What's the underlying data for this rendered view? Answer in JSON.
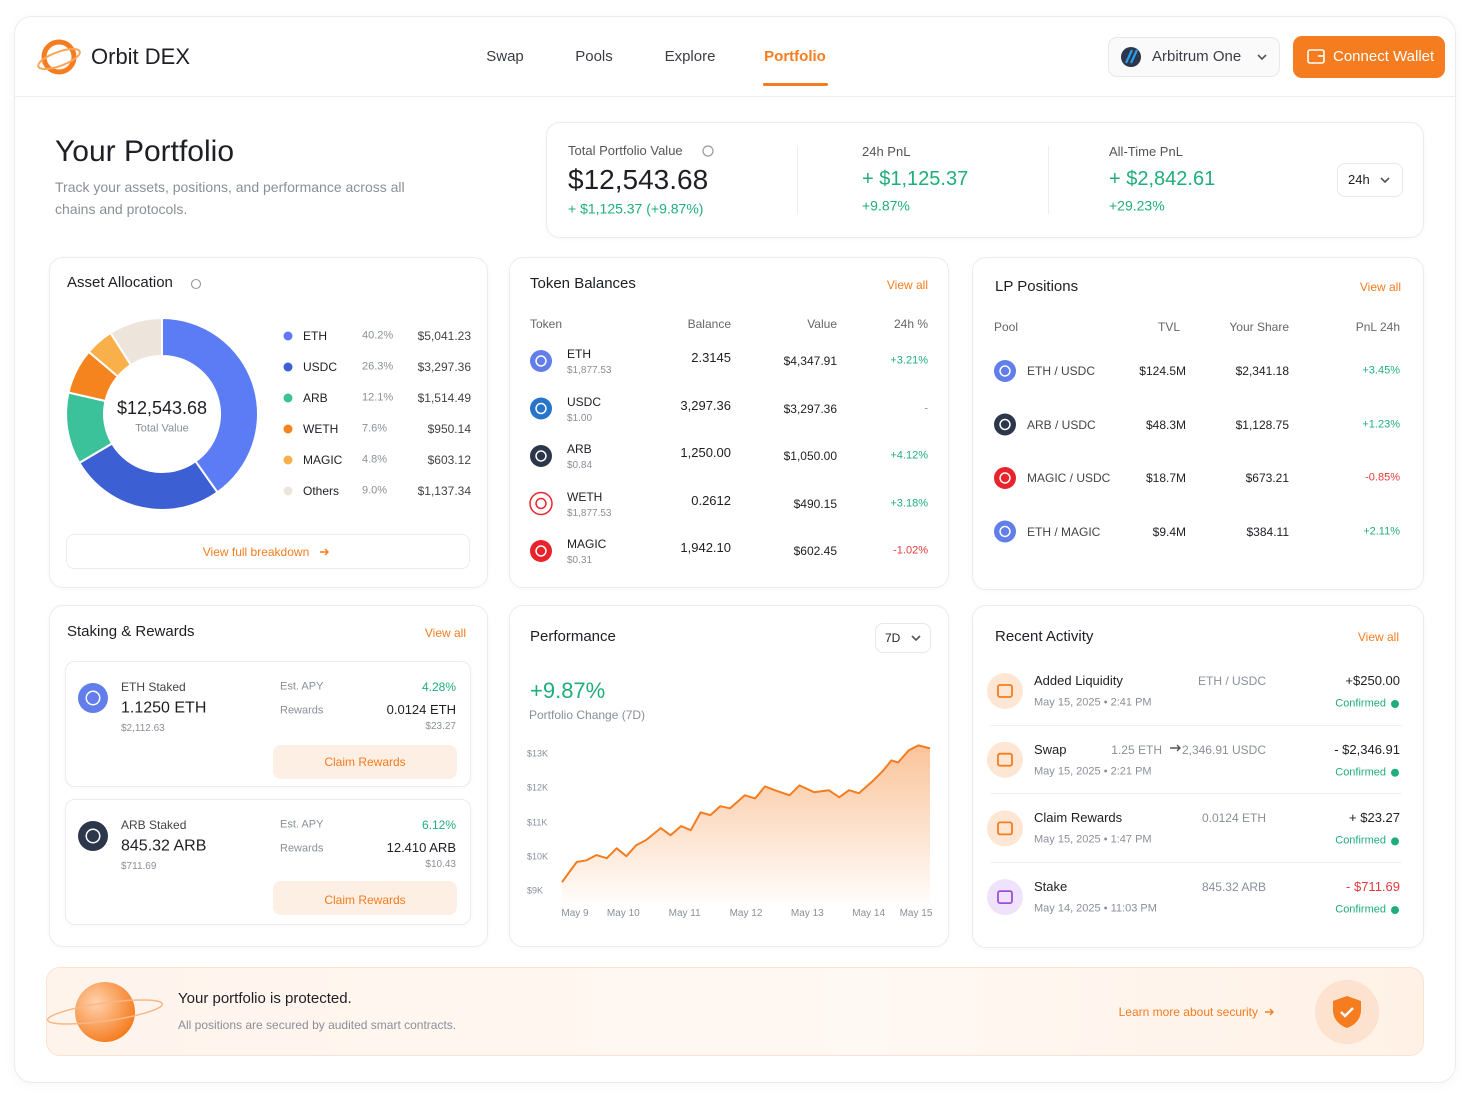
{
  "nav": {
    "brand": "Orbit DEX",
    "links": [
      "Swap",
      "Pools",
      "Explore",
      "Portfolio"
    ],
    "active": 3,
    "network": "Arbitrum One",
    "connect": "Connect Wallet"
  },
  "header": {
    "title": "Your Portfolio",
    "subtitle": "Track your assets, positions, and performance across all chains and protocols."
  },
  "summary": {
    "total": {
      "label": "Total Portfolio Value",
      "value": "$12,543.68",
      "change": "+ $1,125.37 (+9.87%)"
    },
    "pnl_24h": {
      "label": "24h PnL",
      "value": "+ $1,125.37",
      "change": "+9.87%"
    },
    "pnl_all": {
      "label": "All-Time PnL",
      "value": "+ $2,842.61",
      "change": "+29.23%"
    },
    "range": "24h"
  },
  "tokens": {
    "title": "Token Balances",
    "link": "View all",
    "columns": [
      "Token",
      "Balance",
      "Value",
      "24h %"
    ],
    "rows": [
      {
        "symbol": "ETH",
        "price": "$1,877.53",
        "balance": "2.3145",
        "value": "$4,347.91",
        "change": "+3.21%"
      },
      {
        "symbol": "USDC",
        "price": "$1.00",
        "balance": "3,297.36",
        "value": "$3,297.36",
        "change": "-"
      },
      {
        "symbol": "ARB",
        "price": "$0.84",
        "balance": "1,250.00",
        "value": "$1,050.00",
        "change": "+4.12%"
      },
      {
        "symbol": "WETH",
        "price": "$1,877.53",
        "balance": "0.2612",
        "value": "$490.15",
        "change": "+3.18%"
      },
      {
        "symbol": "MAGIC",
        "price": "$0.31",
        "balance": "1,942.10",
        "value": "$602.45",
        "change": "-1.02%"
      }
    ]
  },
  "lp": {
    "title": "LP Positions",
    "link": "View all",
    "columns": [
      "Pool",
      "TVL",
      "Your Share",
      "PnL 24h"
    ],
    "rows": [
      {
        "pool": "ETH / USDC",
        "tvl": "$124.5M",
        "share": "$2,341.18",
        "pnl": "+3.45%"
      },
      {
        "pool": "ARB / USDC",
        "tvl": "$48.3M",
        "share": "$1,128.75",
        "pnl": "+1.23%"
      },
      {
        "pool": "MAGIC / USDC",
        "tvl": "$18.7M",
        "share": "$673.21",
        "pnl": "-0.85%"
      },
      {
        "pool": "ETH / MAGIC",
        "tvl": "$9.4M",
        "share": "$384.11",
        "pnl": "+2.11%"
      }
    ]
  },
  "staking": {
    "title": "Staking & Rewards",
    "link": "View all",
    "items": [
      {
        "name": "ETH Staked",
        "amount": "1.1250 ETH",
        "usd": "$2,112.63",
        "apy_label": "Est. APY",
        "apy": "4.28%",
        "rewards_label": "Rewards",
        "rewards": "0.0124 ETH",
        "rewards_usd": "$23.27",
        "button": "Claim Rewards"
      },
      {
        "name": "ARB Staked",
        "amount": "845.32 ARB",
        "usd": "$711.69",
        "apy_label": "Est. APY",
        "apy": "6.12%",
        "rewards_label": "Rewards",
        "rewards": "12.410 ARB",
        "rewards_usd": "$10.43",
        "button": "Claim Rewards"
      }
    ]
  },
  "activity": {
    "title": "Recent Activity",
    "link": "View all",
    "items": [
      {
        "action": "Added Liquidity",
        "detail": "ETH / USDC",
        "time": "May 15, 2025 • 2:41 PM",
        "amount": "+$250.00",
        "status": "Confirmed",
        "color": "#1d1f24"
      },
      {
        "action": "Swap",
        "detail_from": "1.25 ETH",
        "detail_to": "2,346.91 USDC",
        "time": "May 15, 2025 • 2:21 PM",
        "amount": "- $2,346.91",
        "status": "Confirmed",
        "color": "#1d1f24"
      },
      {
        "action": "Claim Rewards",
        "detail": "0.0124 ETH",
        "time": "May 15, 2025 • 1:47 PM",
        "amount": "+ $23.27",
        "status": "Confirmed",
        "color": "#1d1f24"
      },
      {
        "action": "Stake",
        "detail": "845.32 ARB",
        "time": "May 14, 2025 • 11:03 PM",
        "amount": "- $711.69",
        "status": "Confirmed",
        "color": "#e5383b"
      }
    ]
  },
  "banner": {
    "title": "Your portfolio is protected.",
    "text": "All positions are secured by audited smart contracts.",
    "link": "Learn more about security"
  },
  "chart_data": [
    {
      "type": "pie",
      "title": "Asset Allocation",
      "center_value": "$12,543.68",
      "center_label": "Total Value",
      "link": "View full breakdown",
      "categories": [
        "ETH",
        "USDC",
        "ARB",
        "WETH",
        "MAGIC",
        "Others"
      ],
      "values": [
        40.2,
        26.3,
        12.1,
        7.6,
        4.8,
        9.0
      ],
      "value_labels": [
        "40.2%",
        "26.3%",
        "12.1%",
        "7.6%",
        "4.8%",
        "9.0%"
      ],
      "amounts": [
        "$5,041.23",
        "$3,297.36",
        "$1,514.49",
        "$950.14",
        "$603.12",
        "$1,137.34"
      ],
      "colors": [
        "#5b7cf5",
        "#3c5fd4",
        "#3cc29a",
        "#f5841f",
        "#f9b04a",
        "#ede5dc"
      ]
    },
    {
      "type": "area",
      "title": "Performance",
      "range": "7D",
      "annotation": "+9.87%",
      "subtitle": "Portfolio Change (7D)",
      "color": "#f57c1f",
      "grid": false,
      "x": [
        0,
        0.24,
        0.4,
        0.56,
        0.73,
        0.89,
        1.05,
        1.21,
        1.37,
        1.61,
        1.77,
        1.94,
        2.1,
        2.26,
        2.42,
        2.58,
        2.74,
        2.98,
        3.15,
        3.31,
        3.47,
        3.71,
        3.87,
        4.11,
        4.35,
        4.52,
        4.68,
        4.84,
        5.08,
        5.24,
        5.37,
        5.48,
        5.65,
        5.81,
        6.0
      ],
      "values": [
        9260,
        9850,
        9900,
        10050,
        9960,
        10250,
        10020,
        10340,
        10490,
        10840,
        10630,
        10900,
        10780,
        11300,
        11220,
        11480,
        11420,
        11800,
        11710,
        12060,
        11950,
        11800,
        12090,
        11890,
        11950,
        11740,
        11950,
        11860,
        12240,
        12530,
        12820,
        12760,
        13110,
        13260,
        13170
      ],
      "xlim": [
        0,
        6
      ],
      "xticks": [
        {
          "value": 0,
          "label": "May 9"
        },
        {
          "value": 1,
          "label": "May 10"
        },
        {
          "value": 2,
          "label": "May 11"
        },
        {
          "value": 3,
          "label": "May 12"
        },
        {
          "value": 4,
          "label": "May 13"
        },
        {
          "value": 5,
          "label": "May 14"
        },
        {
          "value": 6,
          "label": "May 15"
        }
      ],
      "ylim": [
        8650,
        13300
      ],
      "yticks": [
        {
          "value": 9000,
          "label": "$9K"
        },
        {
          "value": 10000,
          "label": "$10K"
        },
        {
          "value": 11000,
          "label": "$11K"
        },
        {
          "value": 12000,
          "label": "$12K"
        },
        {
          "value": 13000,
          "label": "$13K"
        }
      ]
    }
  ]
}
